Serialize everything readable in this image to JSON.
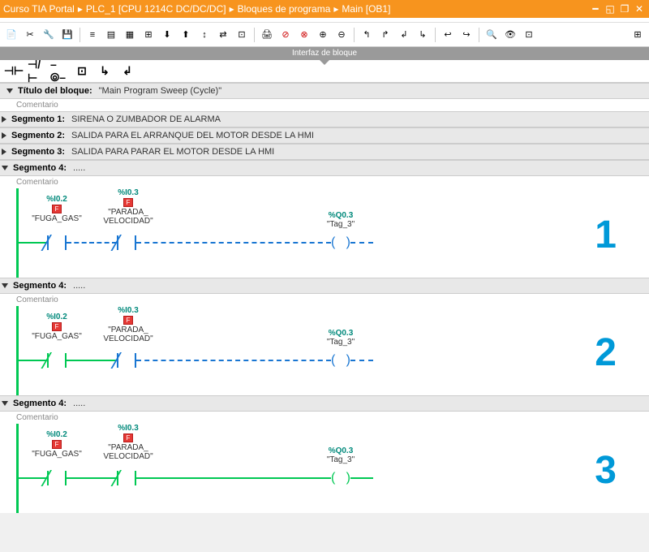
{
  "titlebar": {
    "parts": [
      "Curso TIA Portal",
      "PLC_1 [CPU 1214C DC/DC/DC]",
      "Bloques de programa",
      "Main [OB1]"
    ]
  },
  "interface_label": "Interfaz de bloque",
  "block_header": {
    "label": "Título del bloque:",
    "value": "\"Main Program Sweep (Cycle)\"",
    "comment": "Comentario"
  },
  "segments_closed": [
    {
      "label": "Segmento 1:",
      "desc": "SIRENA O ZUMBADOR DE ALARMA"
    },
    {
      "label": "Segmento 2:",
      "desc": "SALIDA PARA EL ARRANQUE DEL MOTOR DESDE LA HMI"
    },
    {
      "label": "Segmento 3:",
      "desc": "SALIDA PARA PARAR EL MOTOR DESDE LA HMI"
    }
  ],
  "ladder_segments": [
    {
      "label": "Segmento 4:",
      "comment": "Comentario",
      "num": "1",
      "wire1": "blue",
      "wire2": "blue",
      "wire3": "blue",
      "c1style": "blue",
      "c2style": "blue",
      "coilstyle": "blue"
    },
    {
      "label": "Segmento 4:",
      "comment": "Comentario",
      "num": "2",
      "wire1": "green",
      "wire2": "blue",
      "wire3": "blue",
      "c1style": "green",
      "c2style": "blue",
      "coilstyle": "blue"
    },
    {
      "label": "Segmento 4:",
      "comment": "Comentario",
      "num": "3",
      "wire1": "green",
      "wire2": "green",
      "wire3": "green",
      "c1style": "green",
      "c2style": "green",
      "coilstyle": "green"
    }
  ],
  "contact1": {
    "addr": "%I0.2",
    "flag": "F",
    "tag": "\"FUGA_GAS\""
  },
  "contact2": {
    "addr": "%I0.3",
    "flag": "F",
    "tag1": "\"PARADA_",
    "tag2": "VELOCIDAD\""
  },
  "coil": {
    "addr": "%Q0.3",
    "tag": "\"Tag_3\""
  },
  "colors": {
    "accent": "#f7941e",
    "green": "#00c853",
    "blue": "#1976d2",
    "teal": "#00897b",
    "number": "#0099d8"
  }
}
